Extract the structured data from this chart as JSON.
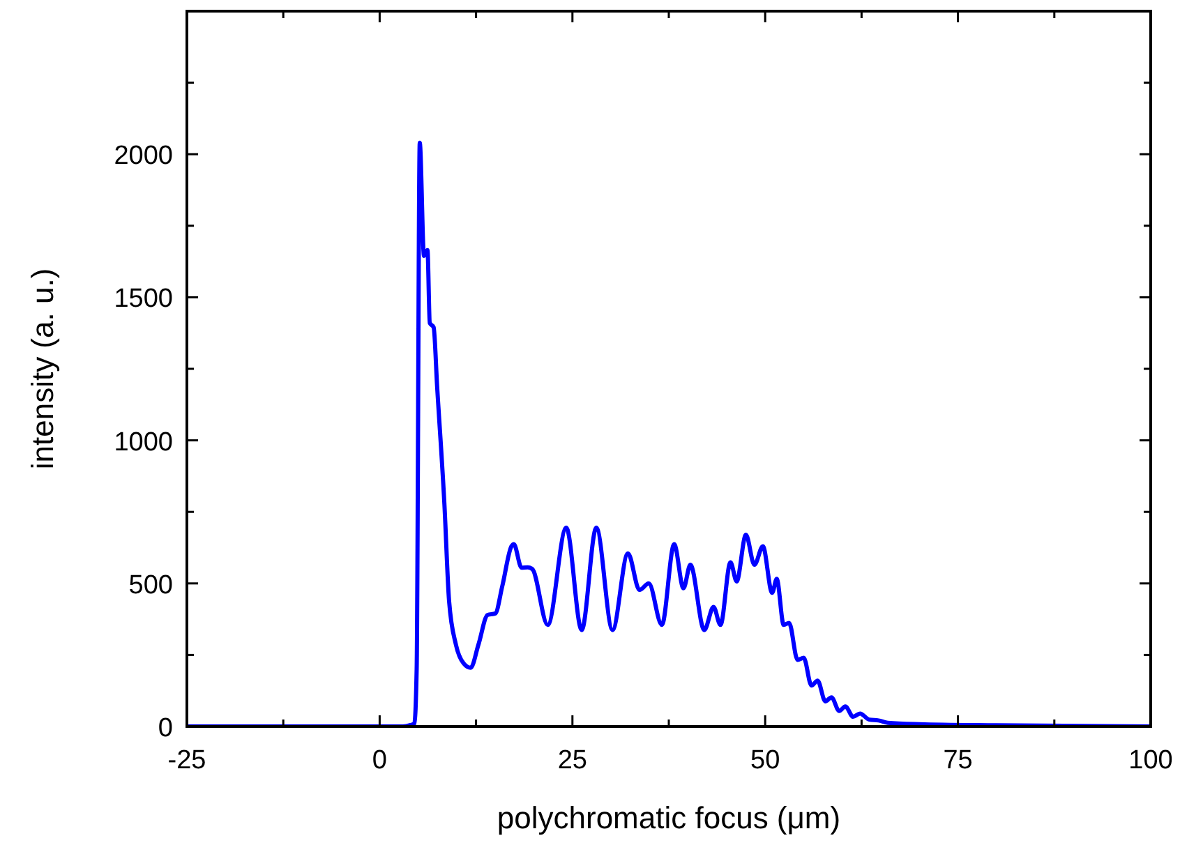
{
  "chart_data": {
    "type": "line",
    "xlabel": "polychromatic focus (μm)",
    "ylabel": "intensity (a. u.)",
    "xlim": [
      -25,
      100
    ],
    "ylim": [
      0,
      2500
    ],
    "xticks": [
      -25,
      {
        "value": -12.5,
        "label": null
      },
      0,
      {
        "value": 12.5,
        "label": null
      },
      25,
      {
        "value": 37.5,
        "label": null
      },
      50,
      {
        "value": 62.5,
        "label": null
      },
      75,
      {
        "value": 87.5,
        "label": null
      },
      100
    ],
    "yticks": [
      0,
      {
        "value": 250,
        "label": null
      },
      500,
      {
        "value": 750,
        "label": null
      },
      1000,
      {
        "value": 1250,
        "label": null
      },
      1500,
      {
        "value": 1750,
        "label": null
      },
      2000,
      {
        "value": 2250,
        "label": null
      }
    ],
    "grid": false,
    "marker": "none",
    "line_style": "solid",
    "series": [
      {
        "color": "#0000ff",
        "x": [
          -25,
          0,
          3,
          4,
          4.5,
          4.8,
          5.2,
          5.75,
          6.2,
          6.5,
          7.0,
          7.45,
          8.4,
          9.0,
          9.9,
          10.9,
          11.8,
          12.8,
          14,
          15,
          15.9,
          17.1,
          17.4,
          18.4,
          19.2,
          19.8,
          21.8,
          24.2,
          26.2,
          28.1,
          30.2,
          32.2,
          33.7,
          34.9,
          36.6,
          38.2,
          39.4,
          40.3,
          42.1,
          43.3,
          44.2,
          45.5,
          46.3,
          47.5,
          48.6,
          49.7,
          50.9,
          51.5,
          52.4,
          53.1,
          54.2,
          55.0,
          56.0,
          56.8,
          57.8,
          58.6,
          59.6,
          60.4,
          61.4,
          62.3,
          63.5,
          64.7,
          65.9,
          70,
          80,
          100
        ],
        "values": [
          0,
          0,
          0,
          5,
          10,
          200,
          2040,
          1645,
          1665,
          1410,
          1395,
          1190,
          775,
          440,
          285,
          220,
          205,
          285,
          390,
          395,
          490,
          630,
          637,
          555,
          556,
          550,
          355,
          695,
          337,
          695,
          337,
          605,
          477,
          500,
          355,
          637,
          483,
          565,
          337,
          418,
          355,
          574,
          507,
          670,
          565,
          630,
          467,
          516,
          355,
          362,
          233,
          240,
          143,
          160,
          88,
          102,
          54,
          70,
          34,
          45,
          24,
          21,
          13,
          8,
          4,
          0
        ]
      }
    ]
  }
}
